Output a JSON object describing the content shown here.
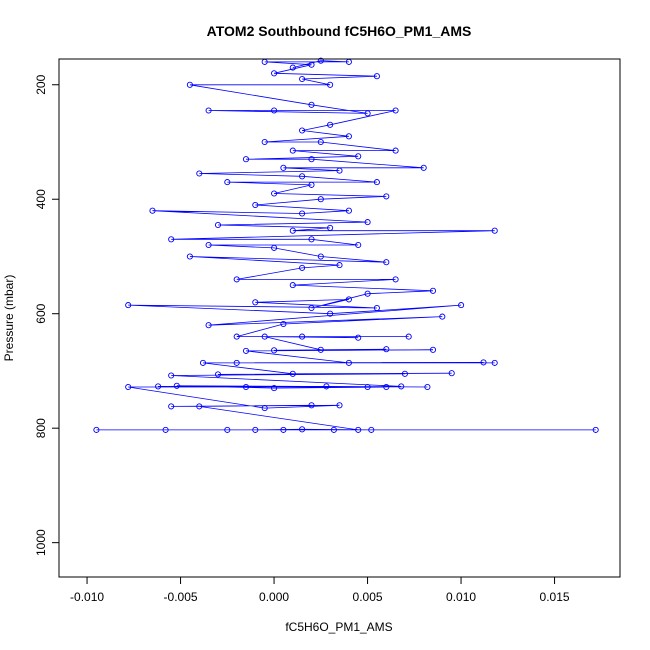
{
  "chart_data": {
    "type": "line",
    "title": "ATOM2 Southbound fC5H6O_PM1_AMS",
    "xlabel": "fC5H6O_PM1_AMS",
    "ylabel": "Pressure (mbar)",
    "xlim": [
      -0.0115,
      0.0185
    ],
    "ylim": [
      1060,
      155
    ],
    "y_reversed": true,
    "x_ticks": [
      -0.01,
      -0.005,
      0.0,
      0.005,
      0.01,
      0.015
    ],
    "x_tick_labels": [
      "-0.010",
      "-0.005",
      "0.000",
      "0.005",
      "0.010",
      "0.015"
    ],
    "y_ticks": [
      200,
      400,
      600,
      800,
      1000
    ],
    "y_tick_labels": [
      "200",
      "400",
      "600",
      "800",
      "1000"
    ],
    "marker": "open-circle",
    "grid": false,
    "legend": "none",
    "colors": {
      "series": "#0000ff",
      "axis": "#000000",
      "background": "#ffffff"
    },
    "series": [
      {
        "points": [
          [
            -0.0095,
            803
          ],
          [
            0.0172,
            803
          ],
          [
            -0.0058,
            803
          ],
          [
            -0.0025,
            803
          ],
          [
            0.0005,
            803
          ],
          [
            0.0032,
            803
          ],
          [
            0.0052,
            803
          ],
          [
            0.0015,
            802
          ],
          [
            -0.001,
            803
          ],
          [
            0.0045,
            803
          ],
          [
            -0.004,
            762
          ],
          [
            0.002,
            760
          ],
          [
            -0.0055,
            762
          ],
          [
            0.0035,
            760
          ],
          [
            -0.0005,
            765
          ],
          [
            -0.0078,
            728
          ],
          [
            0.005,
            728
          ],
          [
            -0.0062,
            727
          ],
          [
            0.006,
            728
          ],
          [
            0.0,
            730
          ],
          [
            -0.0052,
            726
          ],
          [
            0.0082,
            728
          ],
          [
            0.0028,
            727
          ],
          [
            -0.0015,
            728
          ],
          [
            0.0068,
            727
          ],
          [
            -0.0055,
            708
          ],
          [
            0.007,
            705
          ],
          [
            -0.003,
            706
          ],
          [
            0.0095,
            704
          ],
          [
            0.001,
            705
          ],
          [
            -0.0038,
            686
          ],
          [
            0.0112,
            685
          ],
          [
            -0.002,
            686
          ],
          [
            0.0118,
            686
          ],
          [
            0.004,
            686
          ],
          [
            -0.0015,
            665
          ],
          [
            0.0085,
            663
          ],
          [
            0.0,
            664
          ],
          [
            0.006,
            662
          ],
          [
            0.0025,
            663
          ],
          [
            -0.0005,
            640
          ],
          [
            0.0045,
            642
          ],
          [
            0.0015,
            640
          ],
          [
            0.0072,
            640
          ],
          [
            -0.002,
            640
          ],
          [
            0.0005,
            618
          ],
          [
            0.009,
            605
          ],
          [
            -0.0035,
            620
          ],
          [
            0.01,
            585
          ],
          [
            0.003,
            600
          ],
          [
            -0.0078,
            585
          ],
          [
            0.0055,
            590
          ],
          [
            -0.001,
            580
          ],
          [
            0.004,
            575
          ],
          [
            0.002,
            590
          ],
          [
            0.005,
            565
          ],
          [
            0.0085,
            560
          ],
          [
            0.001,
            550
          ],
          [
            0.0065,
            540
          ],
          [
            -0.002,
            540
          ],
          [
            0.0015,
            520
          ],
          [
            0.0035,
            515
          ],
          [
            -0.0045,
            500
          ],
          [
            0.006,
            510
          ],
          [
            0.0025,
            500
          ],
          [
            0.0,
            485
          ],
          [
            -0.0035,
            480
          ],
          [
            0.0045,
            480
          ],
          [
            0.002,
            470
          ],
          [
            -0.0055,
            470
          ],
          [
            0.0118,
            455
          ],
          [
            0.001,
            455
          ],
          [
            0.003,
            450
          ],
          [
            -0.003,
            445
          ],
          [
            0.005,
            440
          ],
          [
            -0.0065,
            420
          ],
          [
            0.0015,
            425
          ],
          [
            0.004,
            420
          ],
          [
            -0.001,
            410
          ],
          [
            0.0025,
            400
          ],
          [
            0.006,
            395
          ],
          [
            0.0,
            390
          ],
          [
            0.002,
            375
          ],
          [
            -0.0025,
            370
          ],
          [
            0.0055,
            370
          ],
          [
            0.0015,
            360
          ],
          [
            -0.004,
            355
          ],
          [
            0.0035,
            350
          ],
          [
            0.0005,
            345
          ],
          [
            0.008,
            345
          ],
          [
            0.002,
            330
          ],
          [
            -0.0015,
            330
          ],
          [
            0.0045,
            325
          ],
          [
            0.001,
            315
          ],
          [
            0.0065,
            315
          ],
          [
            0.0025,
            300
          ],
          [
            -0.0005,
            300
          ],
          [
            0.004,
            290
          ],
          [
            0.0015,
            280
          ],
          [
            0.003,
            270
          ],
          [
            0.0065,
            245
          ],
          [
            0.0,
            245
          ],
          [
            -0.0035,
            245
          ],
          [
            0.005,
            250
          ],
          [
            0.002,
            235
          ],
          [
            -0.0045,
            200
          ],
          [
            0.003,
            200
          ],
          [
            0.0015,
            190
          ],
          [
            0.0055,
            185
          ],
          [
            0.0,
            180
          ],
          [
            0.002,
            165
          ],
          [
            -0.0005,
            160
          ],
          [
            0.004,
            160
          ],
          [
            0.0025,
            158
          ],
          [
            0.001,
            170
          ]
        ]
      }
    ]
  }
}
